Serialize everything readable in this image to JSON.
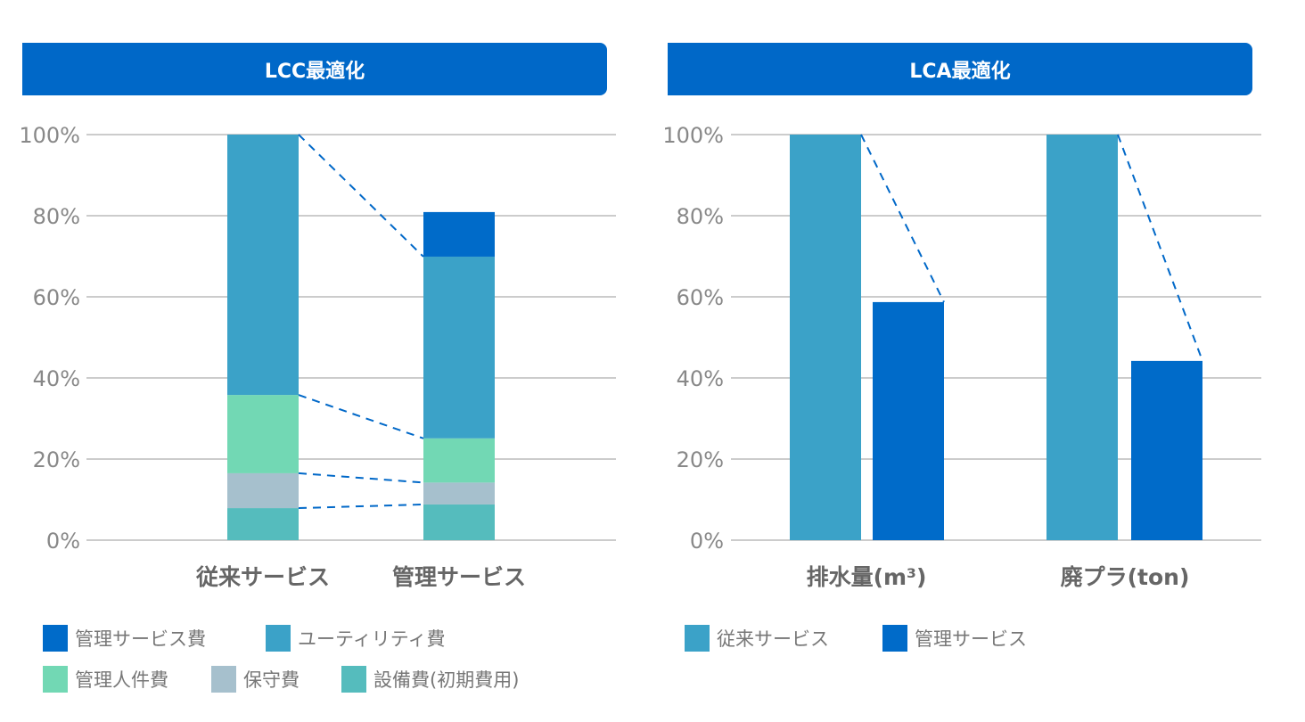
{
  "colors": {
    "header": "#0068c8",
    "management_service_fee": "#006bc9",
    "utility": "#3ba2c8",
    "labor": "#72d8b4",
    "maintenance": "#a6c0cd",
    "equipment": "#55bcbd",
    "conventional": "#3ba2c8",
    "managed": "#006bc9",
    "connector": "#0068c8",
    "grid": "#cccccc"
  },
  "chart_data": [
    {
      "type": "bar",
      "stacked": true,
      "title": "LCC最適化",
      "categories": [
        "従来サービス",
        "管理サービス"
      ],
      "yticks": [
        "0%",
        "20%",
        "40%",
        "60%",
        "80%",
        "100%"
      ],
      "ylim": [
        0,
        100
      ],
      "grid": true,
      "legend_placement": "bottom",
      "series": [
        {
          "name": "設備費(初期費用)",
          "color": "#55bcbd",
          "values": [
            7.9,
            8.8
          ]
        },
        {
          "name": "保守費",
          "color": "#a6c0cd",
          "values": [
            8.6,
            5.4
          ]
        },
        {
          "name": "管理人件費",
          "color": "#72d8b4",
          "values": [
            19.3,
            10.9
          ]
        },
        {
          "name": "ユーティリティ費",
          "color": "#3ba2c8",
          "values": [
            64.2,
            44.8
          ]
        },
        {
          "name": "管理サービス費",
          "color": "#006bc9",
          "values": [
            0,
            11.0
          ]
        }
      ],
      "legend_order": [
        "管理サービス費",
        "ユーティリティ費",
        "管理人件費",
        "保守費",
        "設備費(初期費用)"
      ]
    },
    {
      "type": "bar",
      "stacked": false,
      "title": "LCA最適化",
      "categories": [
        "排水量(m³)",
        "廃プラ(ton)"
      ],
      "yticks": [
        "0%",
        "20%",
        "40%",
        "60%",
        "80%",
        "100%"
      ],
      "ylim": [
        0,
        100
      ],
      "grid": true,
      "legend_placement": "bottom",
      "series": [
        {
          "name": "従来サービス",
          "color": "#3ba2c8",
          "values": [
            100,
            100
          ]
        },
        {
          "name": "管理サービス",
          "color": "#006bc9",
          "values": [
            58.7,
            44.2
          ]
        }
      ]
    }
  ]
}
